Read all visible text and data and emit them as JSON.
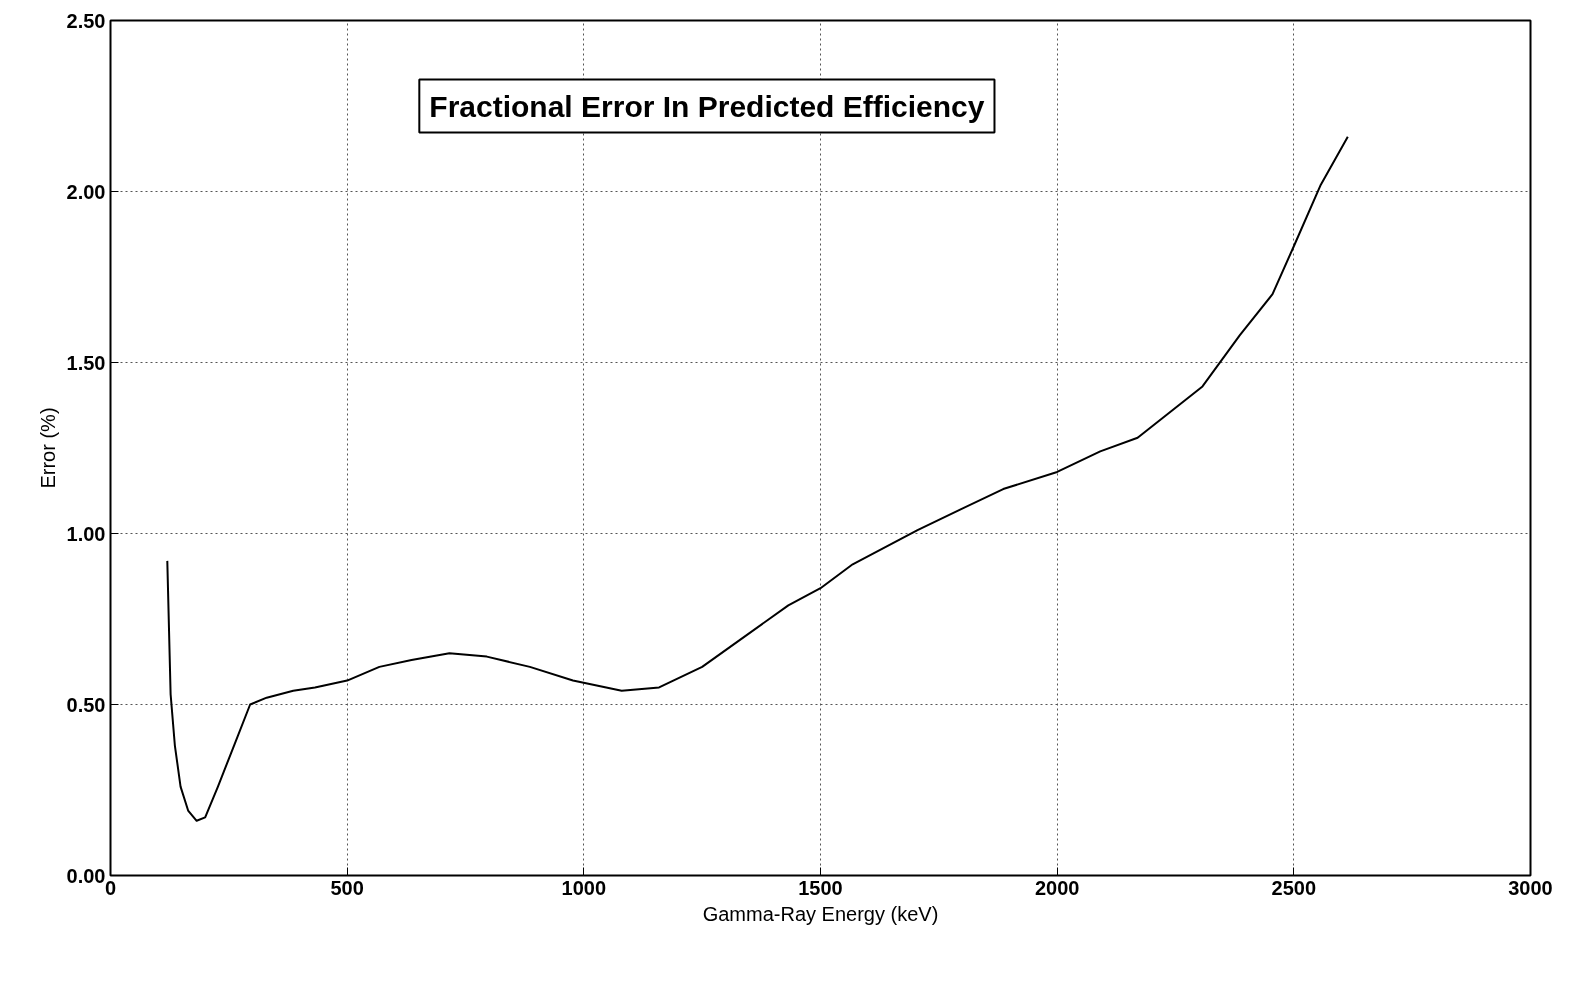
{
  "chart_data": {
    "type": "line",
    "title": "Fractional Error In Predicted Efficiency",
    "xlabel": "Gamma-Ray Energy (keV)",
    "ylabel": "Error (%)",
    "x": [
      120,
      127,
      136,
      148,
      164,
      182,
      200,
      227,
      261,
      295,
      330,
      386,
      432,
      500,
      568,
      636,
      716,
      795,
      886,
      977,
      1080,
      1159,
      1250,
      1341,
      1432,
      1500,
      1568,
      1705,
      1795,
      1886,
      2000,
      2091,
      2170,
      2307,
      2386,
      2455,
      2500,
      2557,
      2614
    ],
    "series": [
      {
        "color": "#000000",
        "values": [
          0.92,
          0.53,
          0.38,
          0.26,
          0.19,
          0.16,
          0.17,
          0.26,
          0.38,
          0.5,
          0.52,
          0.54,
          0.55,
          0.57,
          0.61,
          0.63,
          0.65,
          0.64,
          0.61,
          0.57,
          0.54,
          0.55,
          0.61,
          0.7,
          0.79,
          0.84,
          0.91,
          1.01,
          1.07,
          1.13,
          1.18,
          1.24,
          1.28,
          1.43,
          1.58,
          1.7,
          1.84,
          2.02,
          2.16
        ]
      }
    ],
    "xlim": [
      0,
      3000
    ],
    "ylim": [
      0,
      2.5
    ],
    "xticks": [
      0,
      500,
      1000,
      1500,
      2000,
      2500,
      3000
    ],
    "yticks": [
      {
        "value": 0,
        "label": "0.00"
      },
      {
        "value": 0.5,
        "label": "0.50"
      },
      {
        "value": 1,
        "label": "1.00"
      },
      {
        "value": 1.5,
        "label": "1.50"
      },
      {
        "value": 2,
        "label": "2.00"
      },
      {
        "value": 2.5,
        "label": "2.50"
      }
    ],
    "grid": true,
    "marker": "none",
    "line_style": "solid"
  }
}
